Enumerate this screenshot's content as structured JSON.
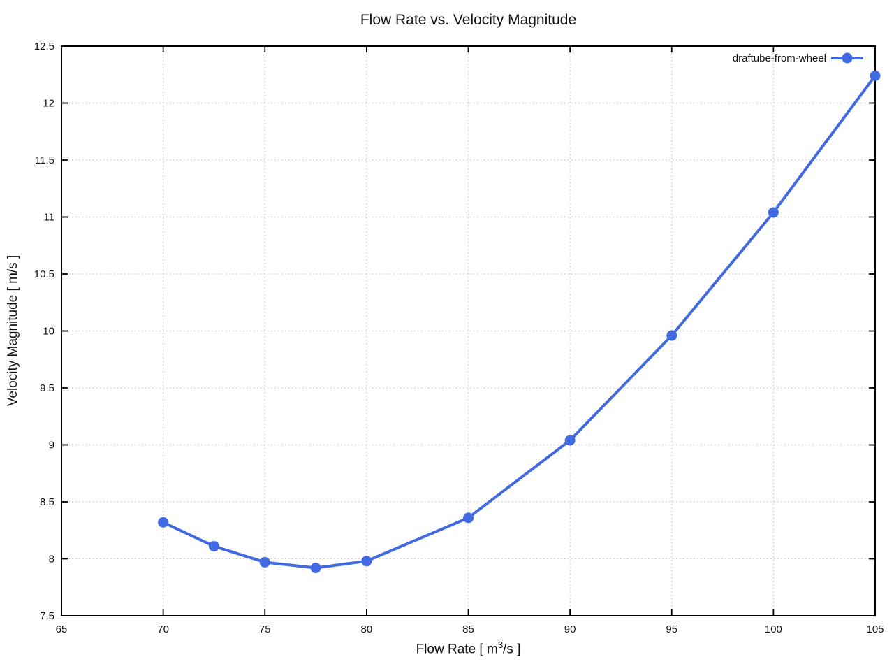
{
  "chart_data": {
    "type": "line",
    "title": "Flow Rate vs. Velocity Magnitude",
    "xlabel": "Flow Rate [ m³/s ]",
    "ylabel": "Velocity Magnitude [ m/s ]",
    "xlim": [
      65,
      105
    ],
    "ylim": [
      7.5,
      12.5
    ],
    "x_ticks": [
      65,
      70,
      75,
      80,
      85,
      90,
      95,
      100,
      105
    ],
    "x_tick_labels": [
      "65",
      "70",
      "75",
      "80",
      "85",
      "90",
      "95",
      "100",
      "105"
    ],
    "y_ticks": [
      7.5,
      8,
      8.5,
      9,
      9.5,
      10,
      10.5,
      11,
      11.5,
      12,
      12.5
    ],
    "y_tick_labels": [
      "7.5",
      "8",
      "8.5",
      "9",
      "9.5",
      "10",
      "10.5",
      "11",
      "11.5",
      "12",
      "12.5"
    ],
    "grid": "dotted",
    "legend_position": "top-right-inside",
    "series": [
      {
        "name": "draftube-from-wheel",
        "x": [
          70,
          72.5,
          75,
          77.5,
          80,
          85,
          90,
          95,
          100,
          105
        ],
        "y": [
          8.32,
          8.11,
          7.97,
          7.92,
          7.98,
          8.36,
          9.04,
          9.96,
          11.04,
          12.24
        ],
        "color": "#4169e1",
        "marker": "circle"
      }
    ]
  },
  "xlabel_parts": {
    "prefix": "Flow Rate [ m",
    "sup": "3",
    "suffix": "/s ]"
  },
  "legend": {
    "label": "draftube-from-wheel"
  },
  "colors": {
    "series": "#4169e1",
    "grid": "#c6c6c6",
    "border": "#000000",
    "text": "#111111"
  }
}
